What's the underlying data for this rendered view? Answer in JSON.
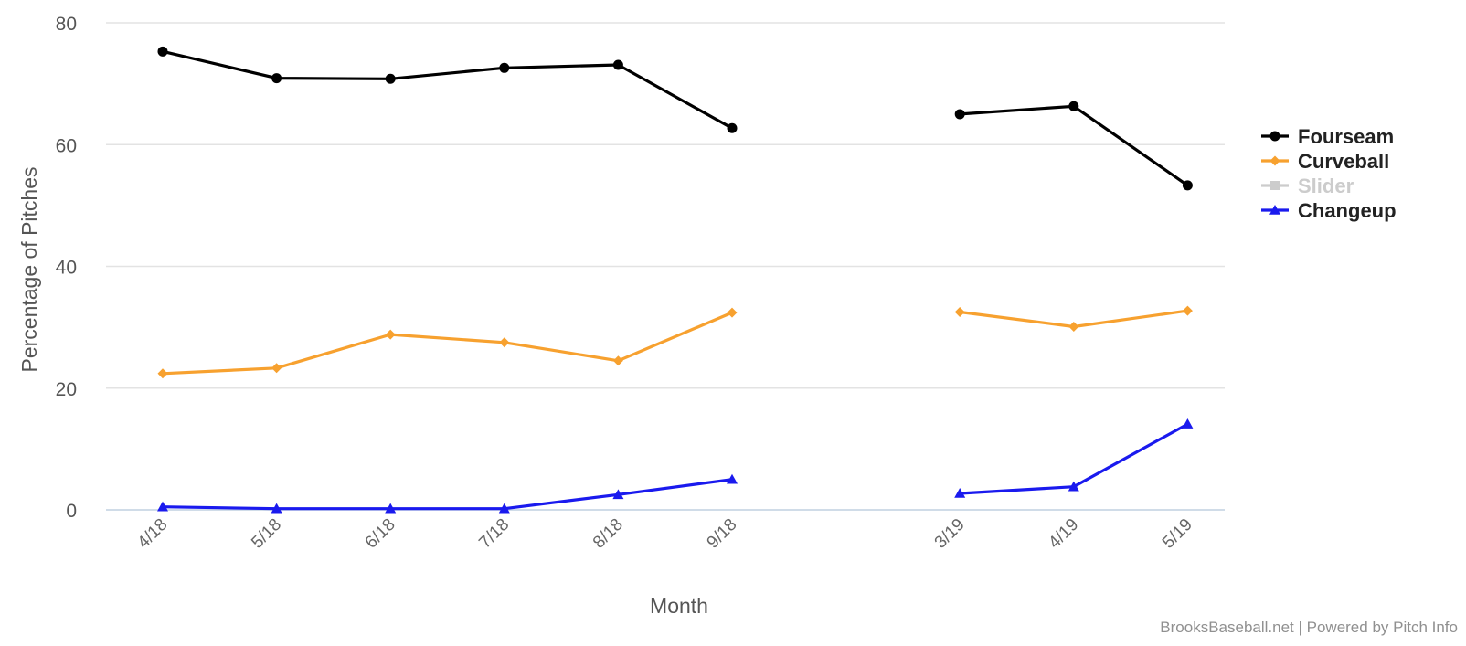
{
  "chart_data": {
    "type": "line",
    "title": "",
    "xlabel": "Month",
    "ylabel": "Percentage of Pitches",
    "ylim": [
      0,
      80
    ],
    "yticks": [
      0,
      20,
      40,
      60,
      80
    ],
    "categories": [
      "4/18",
      "5/18",
      "6/18",
      "7/18",
      "8/18",
      "9/18",
      "",
      "3/19",
      "4/19",
      "5/19"
    ],
    "grid": true,
    "legend_position": "right",
    "series": [
      {
        "name": "Fourseam",
        "color": "#000000",
        "marker": "circle",
        "visible": true,
        "values": [
          75.3,
          70.9,
          70.8,
          72.6,
          73.1,
          62.7,
          null,
          65.0,
          66.3,
          53.3
        ]
      },
      {
        "name": "Curveball",
        "color": "#f7a12f",
        "marker": "diamond",
        "visible": true,
        "values": [
          22.4,
          23.3,
          28.8,
          27.5,
          24.5,
          32.4,
          null,
          32.5,
          30.1,
          32.7
        ]
      },
      {
        "name": "Slider",
        "color": "#cccccc",
        "marker": "square",
        "visible": false,
        "values": [
          null,
          null,
          null,
          null,
          null,
          null,
          null,
          null,
          null,
          null
        ]
      },
      {
        "name": "Changeup",
        "color": "#1a1aee",
        "marker": "triangle",
        "visible": true,
        "values": [
          0.5,
          0.2,
          0.2,
          0.2,
          2.5,
          5.0,
          null,
          2.7,
          3.8,
          14.1
        ]
      }
    ],
    "credits": "BrooksBaseball.net | Powered by Pitch Info"
  }
}
